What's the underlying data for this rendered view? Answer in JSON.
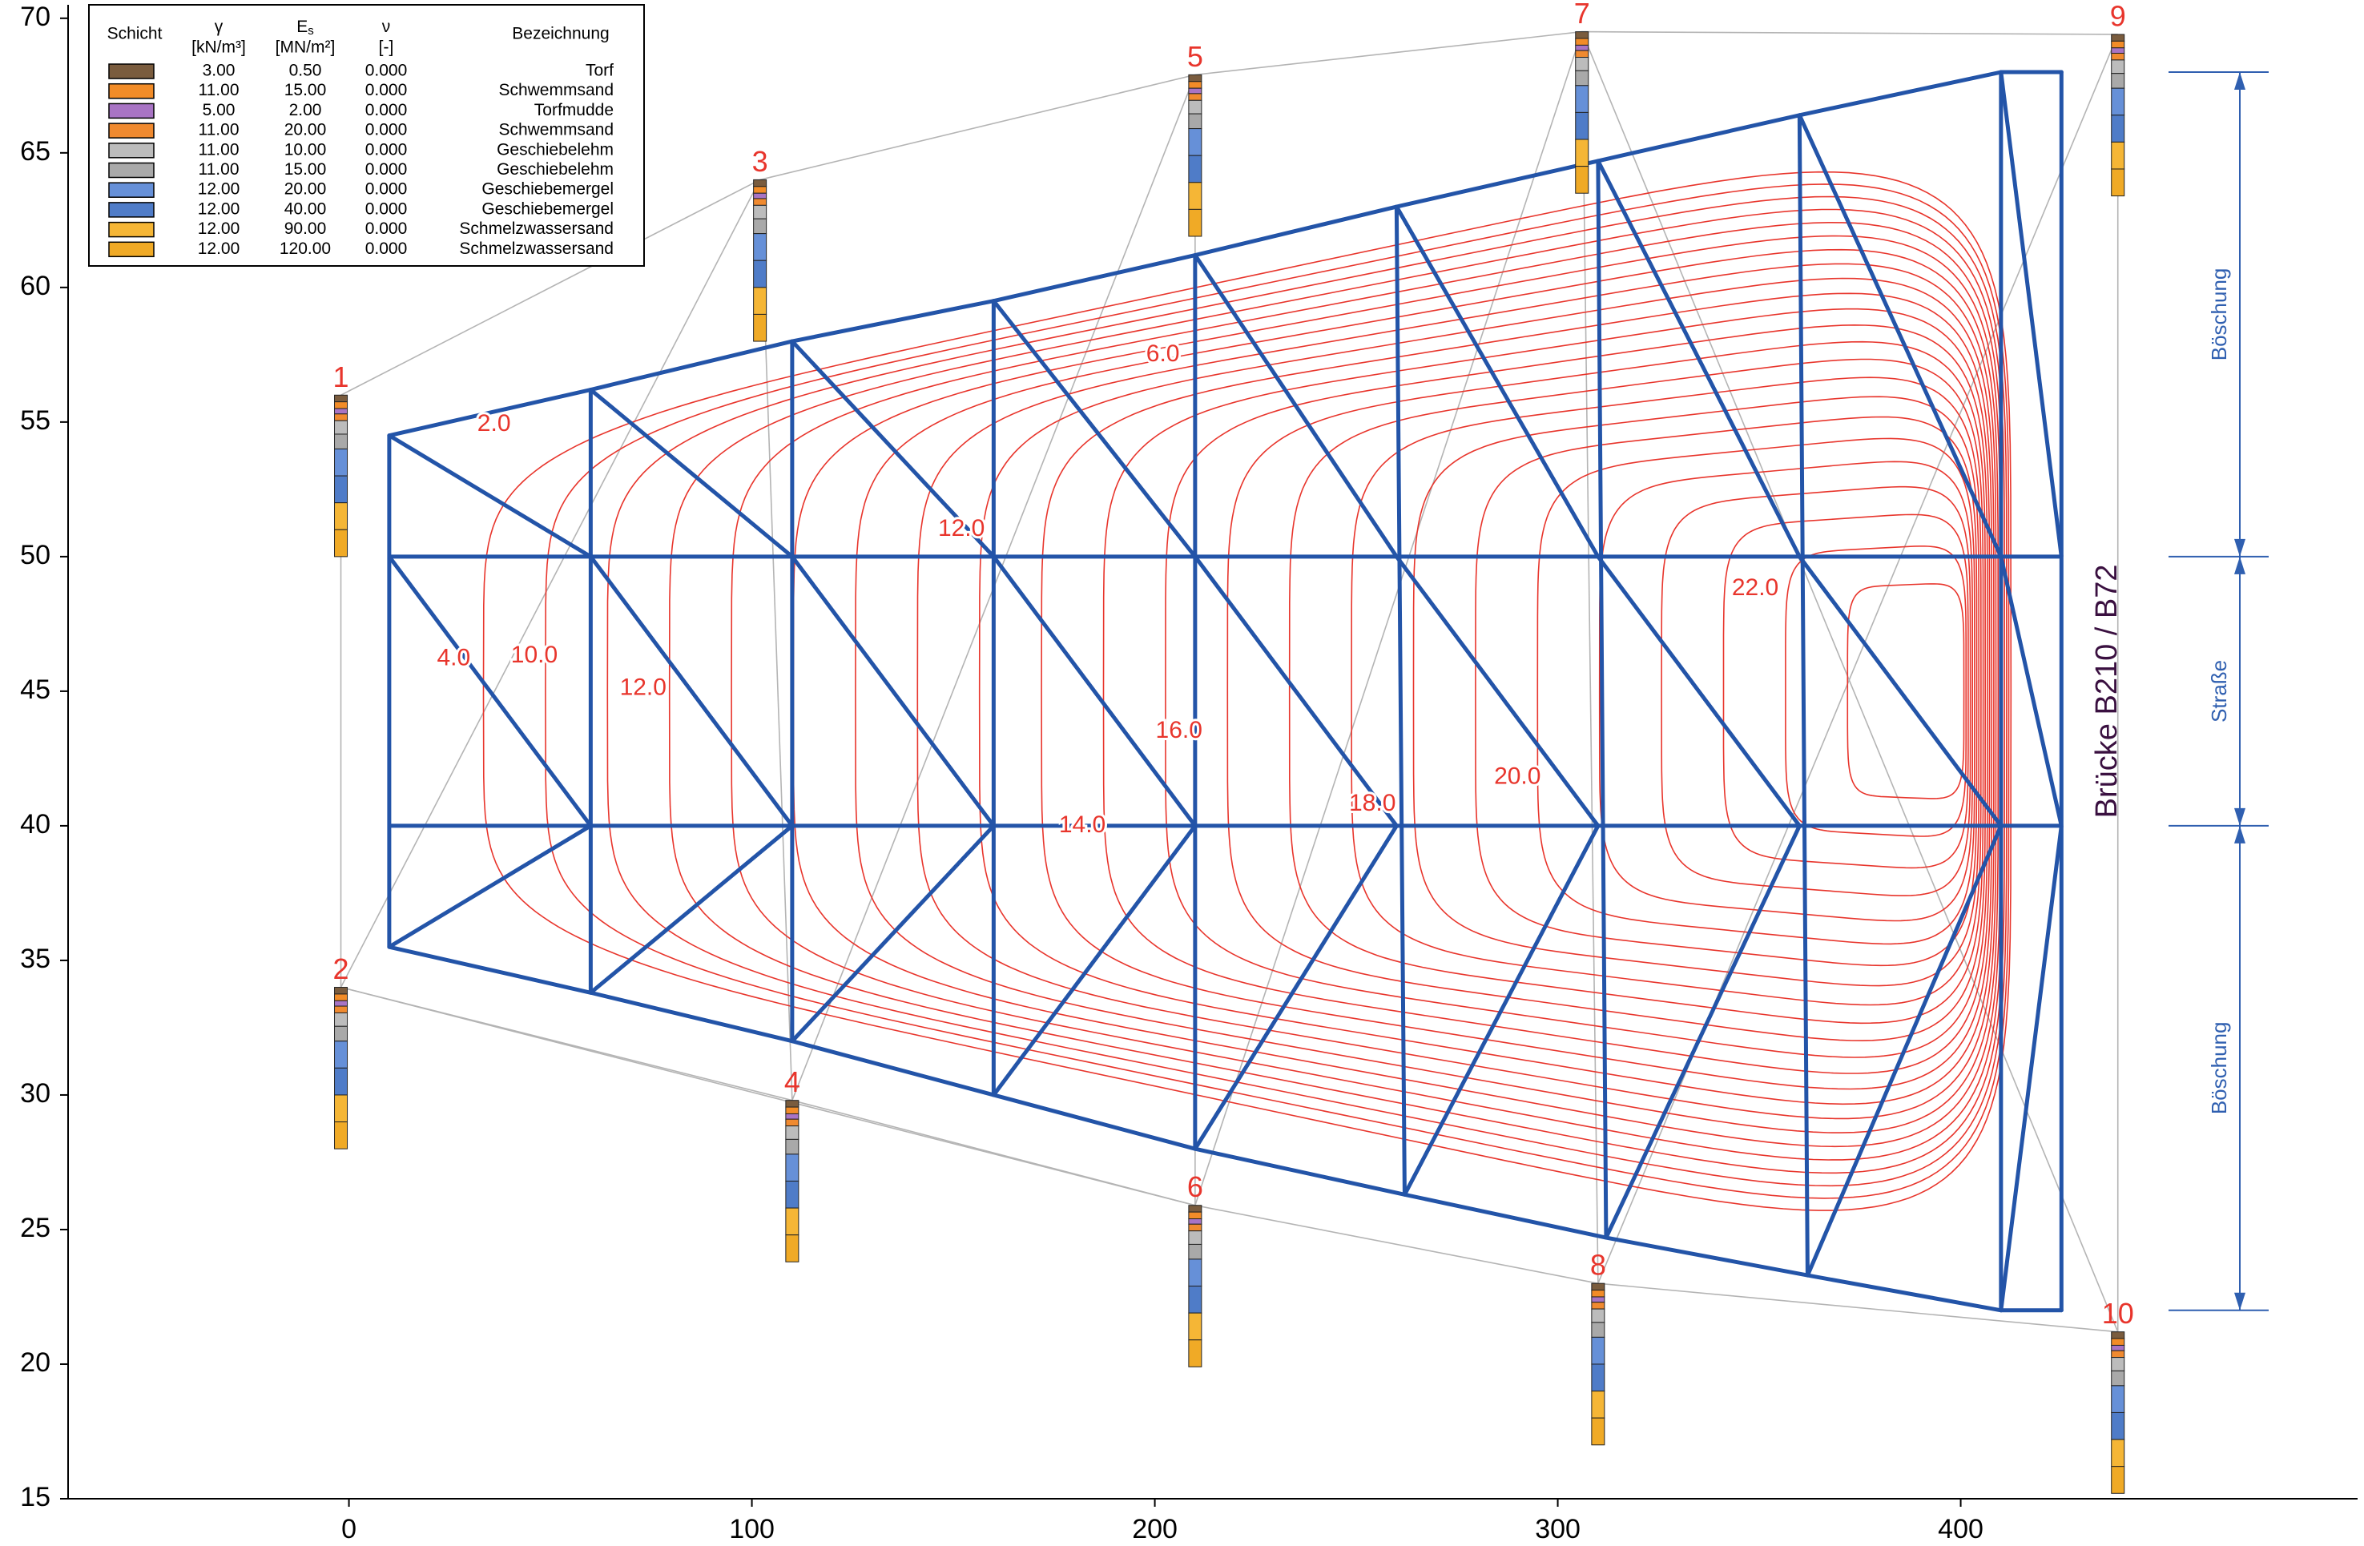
{
  "chart_data": {
    "type": "contour",
    "xlim": [
      -69.7,
      498.5
    ],
    "xticks": [
      0,
      100,
      200,
      300,
      400
    ],
    "ylim": [
      15,
      70.5
    ],
    "yticks": [
      15,
      20,
      25,
      30,
      35,
      40,
      45,
      50,
      55,
      60,
      65,
      70
    ],
    "legend": {
      "columns": [
        {
          "name": "Schicht"
        },
        {
          "symbol": "γ",
          "unit": "[kN/m³]"
        },
        {
          "symbol": "E",
          "subscript": "s",
          "unit": "[MN/m²]"
        },
        {
          "symbol": "ν",
          "unit": "[-]"
        },
        {
          "name": "Bezeichnung"
        }
      ],
      "rows": [
        {
          "color": "#7a5c3e",
          "gamma": "3.00",
          "es": "0.50",
          "nu": "0.000",
          "name": "Torf"
        },
        {
          "color": "#f28c28",
          "gamma": "11.00",
          "es": "15.00",
          "nu": "0.000",
          "name": "Schwemmsand"
        },
        {
          "color": "#a874c4",
          "gamma": "5.00",
          "es": "2.00",
          "nu": "0.000",
          "name": "Torfmudde"
        },
        {
          "color": "#f08a30",
          "gamma": "11.00",
          "es": "20.00",
          "nu": "0.000",
          "name": "Schwemmsand"
        },
        {
          "color": "#bcbcbc",
          "gamma": "11.00",
          "es": "10.00",
          "nu": "0.000",
          "name": "Geschiebelehm"
        },
        {
          "color": "#a9a9a9",
          "gamma": "11.00",
          "es": "15.00",
          "nu": "0.000",
          "name": "Geschiebelehm"
        },
        {
          "color": "#6690d8",
          "gamma": "12.00",
          "es": "20.00",
          "nu": "0.000",
          "name": "Geschiebemergel"
        },
        {
          "color": "#4f7cc8",
          "gamma": "12.00",
          "es": "40.00",
          "nu": "0.000",
          "name": "Geschiebemergel"
        },
        {
          "color": "#f5b636",
          "gamma": "12.00",
          "es": "90.00",
          "nu": "0.000",
          "name": "Schmelzwassersand"
        },
        {
          "color": "#f0aa26",
          "gamma": "12.00",
          "es": "120.00",
          "nu": "0.000",
          "name": "Schmelzwassersand"
        }
      ]
    },
    "boreholes": [
      {
        "label": "1",
        "x": -2,
        "top": 56
      },
      {
        "label": "2",
        "x": -2,
        "top": 34
      },
      {
        "label": "3",
        "x": 102,
        "top": 64
      },
      {
        "label": "4",
        "x": 110,
        "top": 29.8
      },
      {
        "label": "5",
        "x": 210,
        "top": 67.9
      },
      {
        "label": "6",
        "x": 210,
        "top": 25.9
      },
      {
        "label": "7",
        "x": 306,
        "top": 69.5
      },
      {
        "label": "8",
        "x": 310,
        "top": 23
      },
      {
        "label": "9",
        "x": 439,
        "top": 69.4
      },
      {
        "label": "10",
        "x": 439,
        "top": 21.2
      }
    ],
    "profile": [
      0.25,
      0.25,
      0.2,
      0.25,
      0.5,
      0.55,
      1.0,
      1.0,
      1.0,
      1.0
    ],
    "mesh": {
      "color": "#2354a8",
      "top": [
        [
          10,
          54.5
        ],
        [
          60,
          56.2
        ],
        [
          110,
          58
        ],
        [
          160,
          59.5
        ],
        [
          210,
          61.2
        ],
        [
          260,
          63
        ],
        [
          310,
          64.7
        ],
        [
          360,
          66.4
        ],
        [
          410,
          68
        ],
        [
          425,
          68
        ]
      ],
      "bottom": [
        [
          10,
          35.5
        ],
        [
          60,
          33.8
        ],
        [
          110,
          32
        ],
        [
          160,
          30
        ],
        [
          210,
          28
        ],
        [
          262,
          26.3
        ],
        [
          312,
          24.7
        ],
        [
          362,
          23.3
        ],
        [
          410,
          22
        ],
        [
          425,
          22
        ]
      ],
      "mid_y": [
        50,
        40
      ]
    },
    "contour_color": "#e8352c",
    "contour_levels": [
      1,
      2,
      3,
      4,
      5,
      6,
      7,
      8,
      9,
      10,
      11,
      12,
      13,
      14,
      15,
      16,
      17,
      18,
      19,
      20,
      21,
      22,
      23
    ],
    "contour_labels": [
      {
        "value": 2,
        "label": "2.0",
        "x": 36,
        "y": 54.9
      },
      {
        "value": 4,
        "label": "4.0",
        "x": 26,
        "y": 46.2
      },
      {
        "value": 10,
        "label": "10.0",
        "x": 46,
        "y": 46.3
      },
      {
        "value": 12,
        "label": "12.0",
        "x": 73,
        "y": 45.1
      },
      {
        "value": 12,
        "label": "12.0",
        "x": 152,
        "y": 51
      },
      {
        "value": 6,
        "label": "6.0",
        "x": 202,
        "y": 57.5
      },
      {
        "value": 16,
        "label": "16.0",
        "x": 206,
        "y": 43.5
      },
      {
        "value": 14,
        "label": "14.0",
        "x": 182,
        "y": 40
      },
      {
        "value": 18,
        "label": "18.0",
        "x": 254,
        "y": 40.8
      },
      {
        "value": 20,
        "label": "20.0",
        "x": 290,
        "y": 41.8
      },
      {
        "value": 22,
        "label": "22.0",
        "x": 349,
        "y": 48.8
      }
    ],
    "annotation": "Brücke B210 / B72",
    "dimension": {
      "levels": [
        68,
        50,
        40,
        22
      ],
      "labels": [
        "Böschung",
        "Straße",
        "Böschung"
      ]
    }
  }
}
